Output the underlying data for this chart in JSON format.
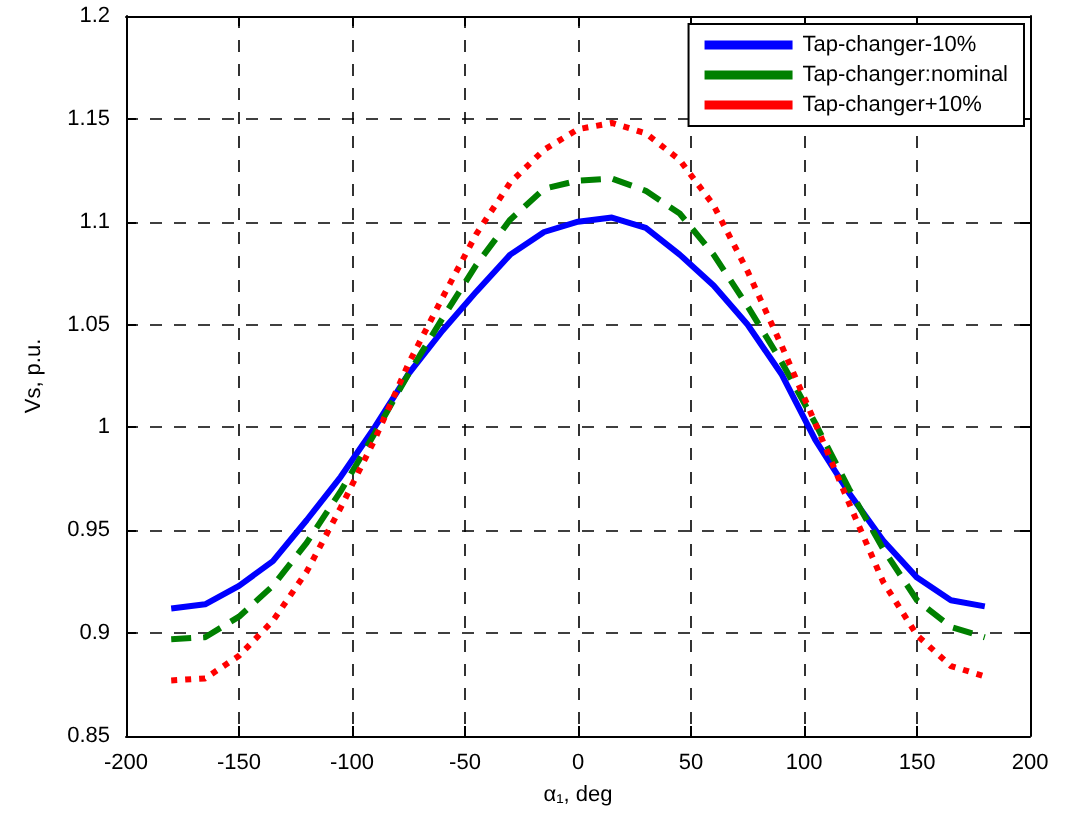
{
  "chart_data": {
    "type": "line",
    "xlabel": "α₁, deg",
    "ylabel": "Vs, p.u.",
    "x": [
      -180,
      -165,
      -150,
      -135,
      -120,
      -105,
      -90,
      -75,
      -60,
      -45,
      -30,
      -15,
      0,
      15,
      30,
      45,
      60,
      75,
      90,
      105,
      120,
      135,
      150,
      165,
      180
    ],
    "series": [
      {
        "name": "Tap-changer-10%",
        "color": "#0000ff",
        "line_style": "solid",
        "values": [
          0.912,
          0.914,
          0.923,
          0.935,
          0.955,
          0.976,
          1.0,
          1.026,
          1.047,
          1.066,
          1.084,
          1.095,
          1.1,
          1.102,
          1.097,
          1.084,
          1.069,
          1.05,
          1.026,
          0.994,
          0.968,
          0.945,
          0.927,
          0.916,
          0.913
        ]
      },
      {
        "name": "Tap-changer:nominal",
        "color": "#008000",
        "line_style": "dashed",
        "values": [
          0.897,
          0.898,
          0.908,
          0.923,
          0.944,
          0.969,
          0.997,
          1.026,
          1.053,
          1.079,
          1.101,
          1.116,
          1.12,
          1.121,
          1.115,
          1.104,
          1.084,
          1.059,
          1.032,
          1.002,
          0.97,
          0.941,
          0.916,
          0.903,
          0.898
        ]
      },
      {
        "name": "Tap-changer+10%",
        "color": "#ff0000",
        "line_style": "dotted",
        "values": [
          0.877,
          0.878,
          0.889,
          0.906,
          0.93,
          0.961,
          0.994,
          1.031,
          1.063,
          1.094,
          1.119,
          1.135,
          1.145,
          1.148,
          1.143,
          1.13,
          1.108,
          1.076,
          1.04,
          1.002,
          0.963,
          0.925,
          0.899,
          0.884,
          0.879
        ]
      }
    ],
    "xlim": [
      -200,
      200
    ],
    "xticks": [
      -200,
      -150,
      -100,
      -50,
      0,
      50,
      100,
      150,
      200
    ],
    "ylim": [
      0.85,
      1.2
    ],
    "yticks": [
      0.85,
      0.9,
      0.95,
      1,
      1.05,
      1.1,
      1.15,
      1.2
    ],
    "grid": true,
    "legend": "top right",
    "marker": "none"
  }
}
